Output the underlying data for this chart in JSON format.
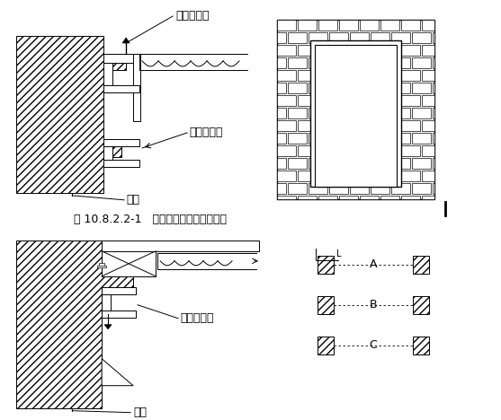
{
  "title": "图 10.8.2.2-1   钢木质防火门结构安装图",
  "label_da_ding": "打钉拉铁皮",
  "label_gang_fang": "钢防火门框",
  "label_qiang_ti_1": "墙体",
  "label_fang_mu": "防火木门框",
  "label_qiang_ti_2": "墙体",
  "label_A": "A",
  "label_B": "B",
  "label_C": "C",
  "line_color": "#000000",
  "bg_color": "#ffffff"
}
